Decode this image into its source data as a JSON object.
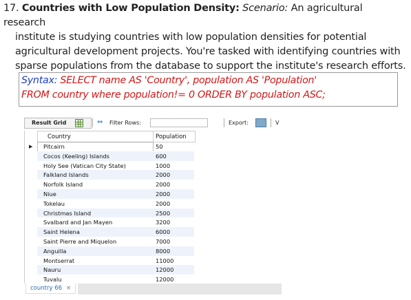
{
  "question": {
    "number": "17.",
    "title": "Countries with Low Population Density:",
    "scenario_label": "Scenario:",
    "line1_rest": "An agricultural research",
    "line2": "institute is studying countries with low population densities for potential",
    "line3": "agricultural development projects. You're tasked with identifying countries with",
    "line4": "sparse populations from the database to support the institute's research efforts."
  },
  "syntax": {
    "label": "Syntax:",
    "line1": "SELECT name AS 'Country', population AS 'Population'",
    "line2": "FROM country where population!= 0 ORDER BY population ASC;"
  },
  "toolbar": {
    "result_grid": "Result Grid",
    "filter_rows": "Filter Rows:",
    "export": "Export:",
    "more": "V",
    "icons": [
      "grid-icon",
      "filter-icon",
      "export-icon"
    ]
  },
  "table": {
    "columns": [
      "Country",
      "Population"
    ],
    "rows": [
      {
        "country": "Pitcairn",
        "population": "50"
      },
      {
        "country": "Cocos (Keeling) Islands",
        "population": "600"
      },
      {
        "country": "Holy See (Vatican City State)",
        "population": "1000"
      },
      {
        "country": "Falkland Islands",
        "population": "2000"
      },
      {
        "country": "Norfolk Island",
        "population": "2000"
      },
      {
        "country": "Niue",
        "population": "2000"
      },
      {
        "country": "Tokelau",
        "population": "2000"
      },
      {
        "country": "Christmas Island",
        "population": "2500"
      },
      {
        "country": "Svalbard and Jan Mayen",
        "population": "3200"
      },
      {
        "country": "Saint Helena",
        "population": "6000"
      },
      {
        "country": "Saint Pierre and Miquelon",
        "population": "7000"
      },
      {
        "country": "Anguilla",
        "population": "8000"
      },
      {
        "country": "Montserrat",
        "population": "11000"
      },
      {
        "country": "Nauru",
        "population": "12000"
      },
      {
        "country": "Tuvalu",
        "population": "12000"
      }
    ]
  },
  "tab": {
    "label": "country 66",
    "close": "×"
  },
  "colors": {
    "syntax_label": "#1f3fbf",
    "syntax_code": "#d01818",
    "tab_text": "#2a6fb3",
    "row_alt": "#eef3fb"
  }
}
